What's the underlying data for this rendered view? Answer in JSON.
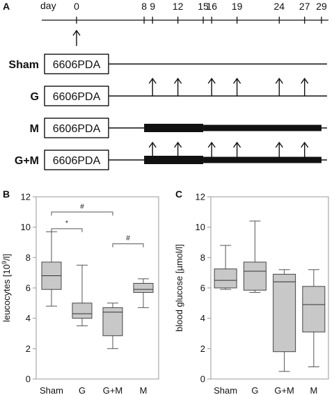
{
  "panels": {
    "A": "A",
    "B": "B",
    "C": "C"
  },
  "timeline": {
    "day_label": "day",
    "days": [
      0,
      8,
      9,
      12,
      15,
      16,
      19,
      24,
      27,
      29
    ],
    "day_range": [
      0,
      29
    ],
    "start_arrow_day": 0,
    "box_label": "6606PDA",
    "groups": [
      {
        "name": "Sham",
        "arrows": [],
        "thick_segments": []
      },
      {
        "name": "G",
        "arrows": [
          9,
          12,
          16,
          19,
          24,
          27
        ],
        "thick_segments": []
      },
      {
        "name": "M",
        "arrows": [],
        "thick_segments": [
          [
            8,
            15
          ],
          [
            15,
            29
          ]
        ]
      },
      {
        "name": "G+M",
        "arrows": [
          9,
          12,
          16,
          19,
          24,
          27
        ],
        "thick_segments": [
          [
            8,
            15
          ],
          [
            15,
            29
          ]
        ]
      }
    ]
  },
  "chart_data": [
    {
      "type": "box",
      "panel": "B",
      "ylabel": "leucocytes [10",
      "ylabel_sup": "9",
      "ylabel_end": "/l]",
      "ylim": [
        0,
        12
      ],
      "yticks": [
        0,
        2,
        4,
        6,
        8,
        10,
        12
      ],
      "categories": [
        "Sham",
        "G",
        "G+M",
        "M"
      ],
      "boxes": [
        {
          "min": 4.8,
          "q1": 5.9,
          "median": 6.8,
          "q3": 7.7,
          "max": 9.7
        },
        {
          "min": 3.5,
          "q1": 4.0,
          "median": 4.3,
          "q3": 5.0,
          "max": 7.5
        },
        {
          "min": 2.0,
          "q1": 2.85,
          "median": 4.4,
          "q3": 4.7,
          "max": 5.0
        },
        {
          "min": 4.7,
          "q1": 5.7,
          "median": 5.9,
          "q3": 6.3,
          "max": 6.6
        }
      ],
      "significance": [
        {
          "from": "Sham",
          "to": "G",
          "y": 9.9,
          "label": "*"
        },
        {
          "from": "Sham",
          "to": "G+M",
          "y": 11.0,
          "label": "#"
        },
        {
          "from": "G+M",
          "to": "M",
          "y": 8.9,
          "label": "#"
        }
      ]
    },
    {
      "type": "box",
      "panel": "C",
      "ylabel": "blood glucose [µmol/l]",
      "ylim": [
        0,
        12
      ],
      "yticks": [
        0,
        2,
        4,
        6,
        8,
        10,
        12
      ],
      "categories": [
        "Sham",
        "G",
        "G+M",
        "M"
      ],
      "boxes": [
        {
          "min": 5.9,
          "q1": 6.0,
          "median": 6.5,
          "q3": 7.25,
          "max": 8.8
        },
        {
          "min": 5.7,
          "q1": 5.85,
          "median": 7.1,
          "q3": 7.7,
          "max": 10.4
        },
        {
          "min": 0.5,
          "q1": 1.8,
          "median": 6.4,
          "q3": 6.9,
          "max": 7.2
        },
        {
          "min": 0.8,
          "q1": 3.1,
          "median": 4.9,
          "q3": 6.1,
          "max": 7.2
        }
      ],
      "significance": []
    }
  ],
  "colors": {
    "box_fill": "#c8c8c8",
    "line": "#111111",
    "bracket": "#555555"
  }
}
